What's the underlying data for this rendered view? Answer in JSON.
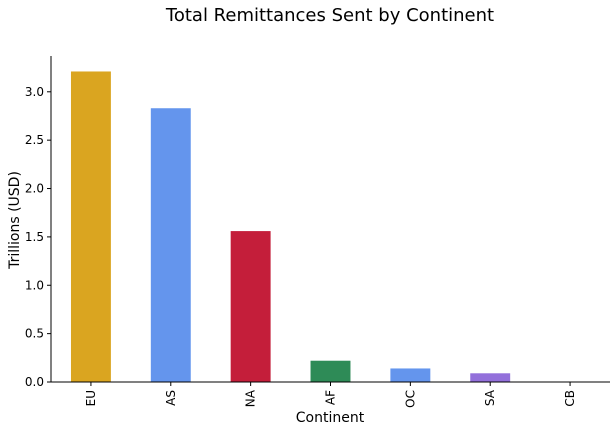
{
  "chart_data": {
    "type": "bar",
    "title": "Total Remittances Sent by Continent",
    "xlabel": "Continent",
    "ylabel": "Trillions (USD)",
    "categories": [
      "EU",
      "AS",
      "NA",
      "AF",
      "OC",
      "SA",
      "CB"
    ],
    "values": [
      3.21,
      2.83,
      1.56,
      0.22,
      0.14,
      0.09,
      0.005
    ],
    "colors": [
      "#DAA520",
      "#6495ED",
      "#C41E3A",
      "#2E8B57",
      "#6495ED",
      "#9370DB",
      "#556B2F"
    ],
    "ylim": [
      0,
      3.37
    ],
    "yticks": [
      "0.0",
      "0.5",
      "1.0",
      "1.5",
      "2.0",
      "2.5",
      "3.0"
    ],
    "grid": false
  }
}
